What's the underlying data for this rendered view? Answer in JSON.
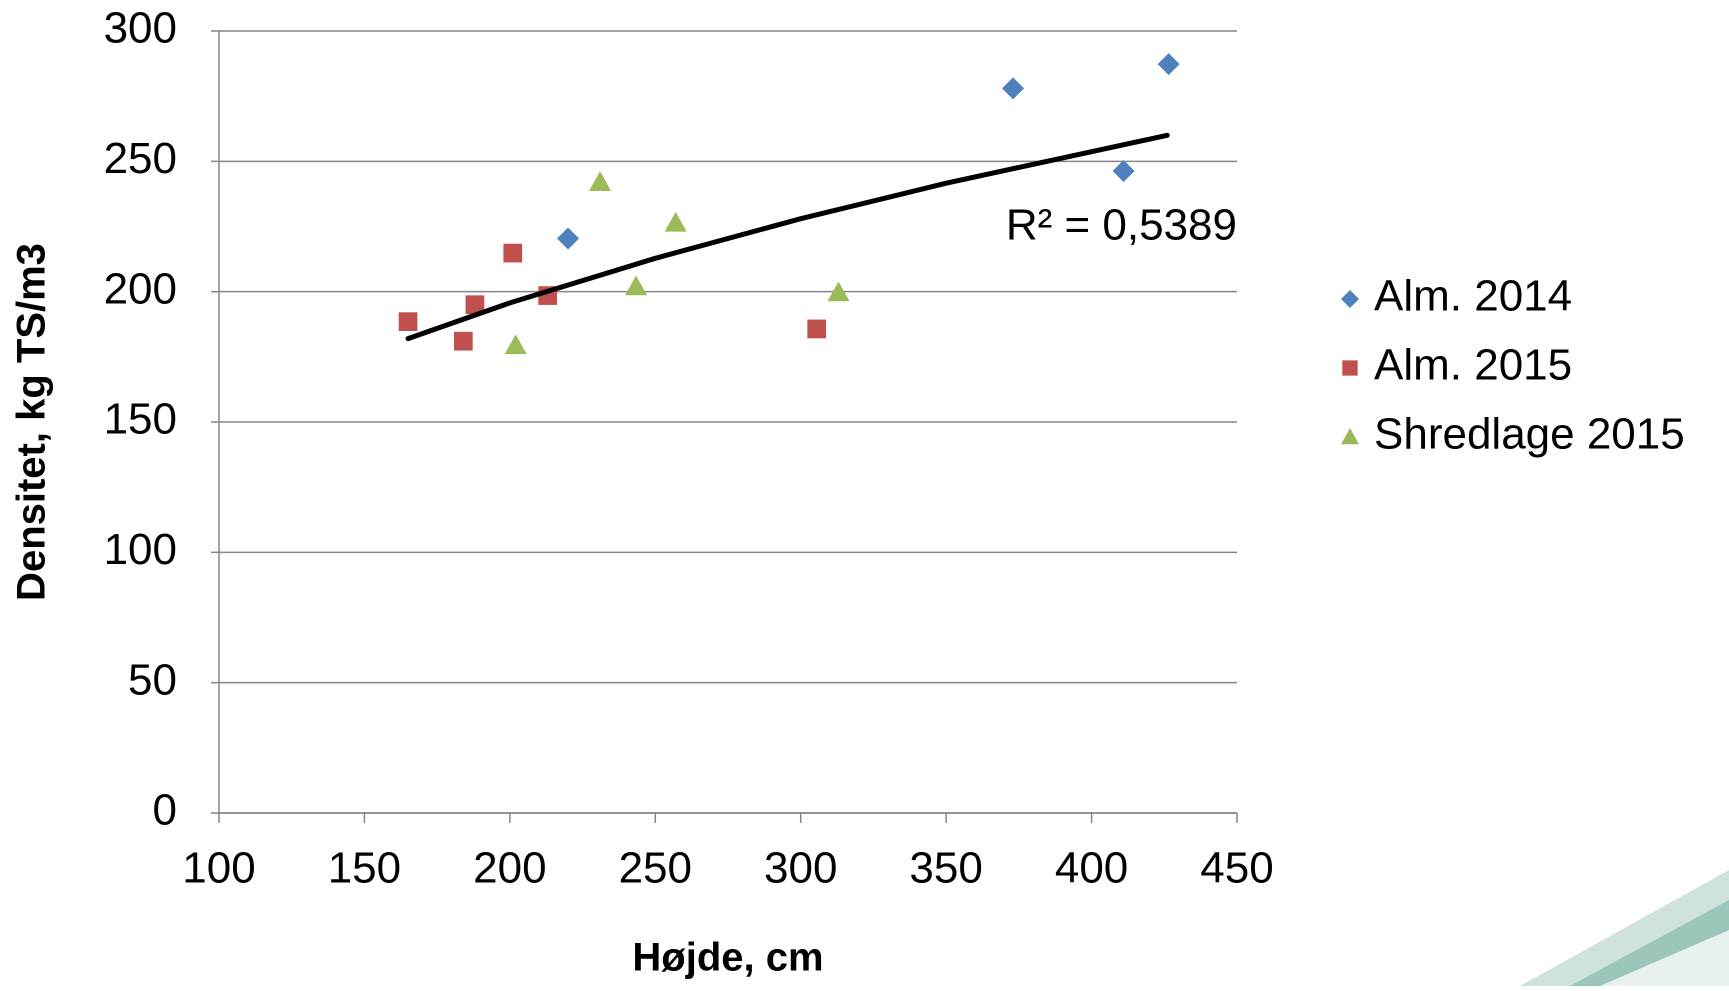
{
  "chart_data": {
    "type": "scatter",
    "xlabel": "Højde, cm",
    "ylabel": "Densitet, kg TS/m3",
    "xlim": [
      100,
      450
    ],
    "xticks": [
      100,
      150,
      200,
      250,
      300,
      350,
      400,
      450
    ],
    "ylim": [
      0,
      300
    ],
    "yticks": [
      0,
      50,
      100,
      150,
      200,
      250,
      300
    ],
    "grid": true,
    "legend": "right",
    "series": [
      {
        "name": "Alm. 2014",
        "color": "#4f81bd",
        "marker": "diamond",
        "x": [
          220,
          373,
          426.5,
          411
        ],
        "y": [
          220.4,
          278,
          287.3,
          246.3
        ]
      },
      {
        "name": "Alm. 2015",
        "color": "#c0504d",
        "marker": "square",
        "x": [
          165,
          184,
          188,
          201,
          213,
          305.5
        ],
        "y": [
          188.5,
          181,
          195,
          214.8,
          198.5,
          185.7
        ]
      },
      {
        "name": "Shredlage 2015",
        "color": "#9bbb59",
        "marker": "triangle",
        "x": [
          231,
          202,
          243.4,
          257,
          313
        ],
        "y": [
          242,
          179.4,
          202,
          226.4,
          199.7
        ]
      }
    ],
    "trendline": {
      "color": "#000000",
      "x": [
        165,
        200,
        250,
        300,
        350,
        426
      ],
      "y": [
        182,
        195.7,
        212.8,
        228,
        241.6,
        260
      ],
      "annotation": "R² = 0,5389"
    }
  }
}
